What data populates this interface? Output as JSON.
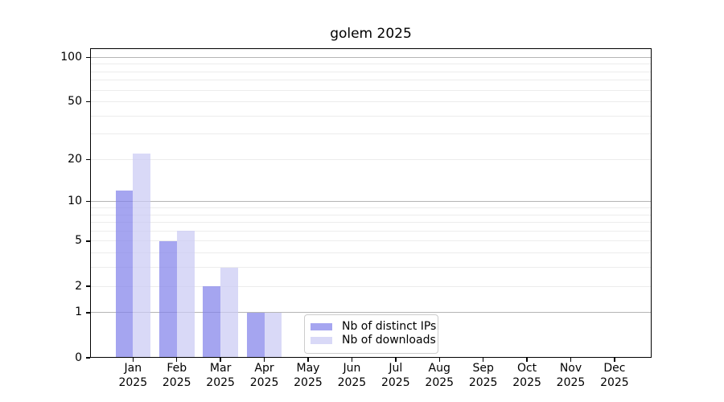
{
  "chart_data": {
    "type": "bar",
    "title": "golem 2025",
    "categories": [
      "Jan",
      "Feb",
      "Mar",
      "Apr",
      "May",
      "Jun",
      "Jul",
      "Aug",
      "Sep",
      "Oct",
      "Nov",
      "Dec"
    ],
    "category_year": "2025",
    "series": [
      {
        "name": "Nb of distinct IPs",
        "color": "rgba(130,130,234,0.72)",
        "values": [
          12,
          5,
          2,
          1,
          0,
          0,
          0,
          0,
          0,
          0,
          0,
          0
        ]
      },
      {
        "name": "Nb of downloads",
        "color": "rgba(202,202,244,0.72)",
        "values": [
          22,
          6,
          3,
          1,
          0,
          0,
          0,
          0,
          0,
          0,
          0,
          0
        ]
      }
    ],
    "yscale": "log1p",
    "ylim": [
      0,
      115
    ],
    "yticks": [
      0,
      1,
      2,
      5,
      10,
      20,
      50,
      100
    ],
    "major_gridlines": [
      1,
      10,
      100
    ],
    "minor_gridlines": [
      2,
      3,
      4,
      5,
      6,
      7,
      8,
      9,
      20,
      30,
      40,
      50,
      60,
      70,
      80,
      90
    ],
    "grid_major_color": "#b5b5b5",
    "grid_minor_color": "#ececec",
    "xlabel": "",
    "ylabel": "",
    "legend_position": "inside lower center",
    "background_color": "#ffffff"
  }
}
